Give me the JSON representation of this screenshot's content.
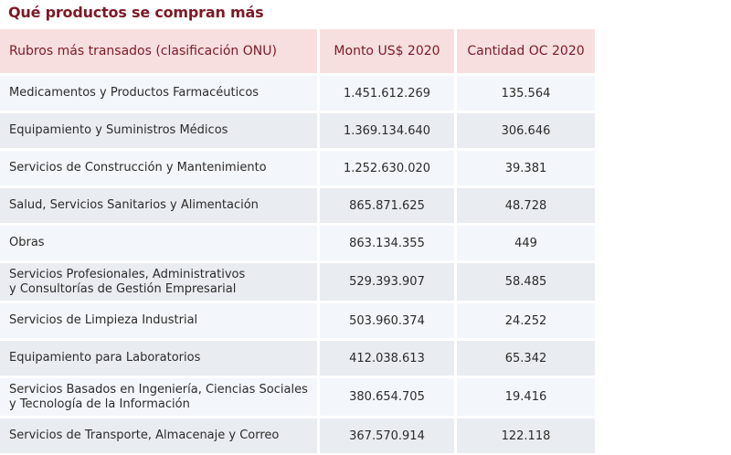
{
  "title": "Qué productos se compran más",
  "table": {
    "headers": [
      "Rubros más transados (clasificación ONU)",
      "Monto US$ 2020",
      "Cantidad OC 2020"
    ],
    "rows": [
      {
        "rubro": [
          "Medicamentos y Productos Farmacéuticos"
        ],
        "monto": "1.451.612.269",
        "cantidad": "135.564"
      },
      {
        "rubro": [
          "Equipamiento y Suministros Médicos"
        ],
        "monto": "1.369.134.640",
        "cantidad": "306.646"
      },
      {
        "rubro": [
          "Servicios de Construcción y Mantenimiento"
        ],
        "monto": "1.252.630.020",
        "cantidad": "39.381"
      },
      {
        "rubro": [
          "Salud, Servicios Sanitarios y Alimentación"
        ],
        "monto": "865.871.625",
        "cantidad": "48.728"
      },
      {
        "rubro": [
          "Obras"
        ],
        "monto": "863.134.355",
        "cantidad": "449"
      },
      {
        "rubro": [
          "Servicios Profesionales, Administrativos",
          "y Consultorías de Gestión Empresarial"
        ],
        "monto": "529.393.907",
        "cantidad": "58.485"
      },
      {
        "rubro": [
          "Servicios de Limpieza Industrial"
        ],
        "monto": "503.960.374",
        "cantidad": "24.252"
      },
      {
        "rubro": [
          "Equipamiento para Laboratorios"
        ],
        "monto": "412.038.613",
        "cantidad": "65.342"
      },
      {
        "rubro": [
          "Servicios Basados en Ingeniería, Ciencias Sociales",
          "y Tecnología de la Información"
        ],
        "monto": "380.654.705",
        "cantidad": "19.416"
      },
      {
        "rubro": [
          "Servicios de Transporte, Almacenaje y Correo"
        ],
        "monto": "367.570.914",
        "cantidad": "122.118"
      }
    ]
  },
  "colors": {
    "title": "#7b1a26",
    "header_bg": "#f8dfdf",
    "row_light": "#f3f6fa",
    "row_dark": "#e9ecf1"
  }
}
